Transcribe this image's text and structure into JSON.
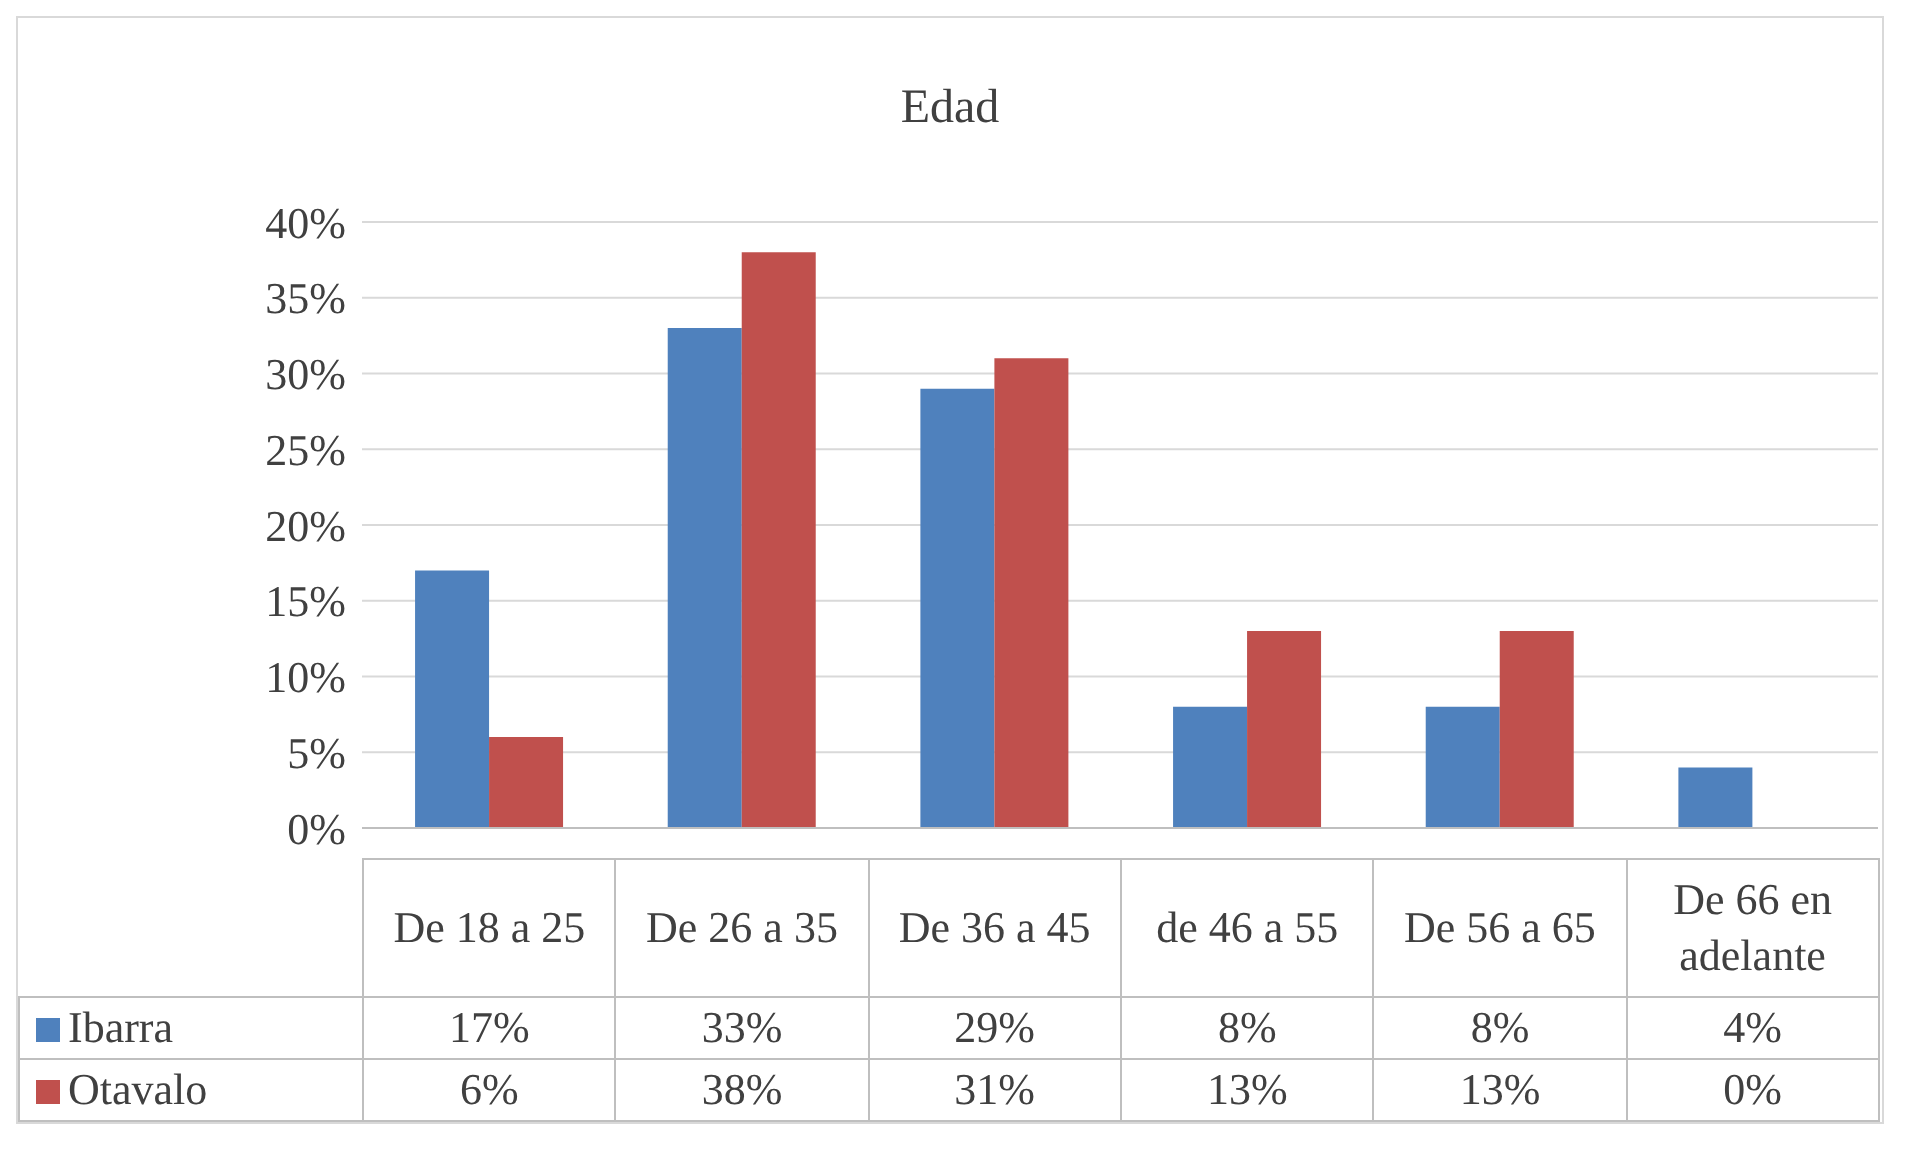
{
  "chart_data": {
    "type": "bar",
    "title": "Edad",
    "categories": [
      "De 18 a 25",
      "De 26 a 35",
      "De 36 a 45",
      "de 46 a 55",
      "De 56 a 65",
      "De 66 en adelante"
    ],
    "series": [
      {
        "name": "Ibarra",
        "color": "#4f81bd",
        "values": [
          17,
          33,
          29,
          8,
          8,
          4
        ],
        "value_labels": [
          "17%",
          "33%",
          "29%",
          "8%",
          "8%",
          "4%"
        ]
      },
      {
        "name": "Otavalo",
        "color": "#c0504d",
        "values": [
          6,
          38,
          31,
          13,
          13,
          0
        ],
        "value_labels": [
          "6%",
          "38%",
          "31%",
          "13%",
          "13%",
          "0%"
        ]
      }
    ],
    "ylim": [
      0,
      40
    ],
    "yticks": [
      {
        "value": 0,
        "label": "0%"
      },
      {
        "value": 5,
        "label": "5%"
      },
      {
        "value": 10,
        "label": "10%"
      },
      {
        "value": 15,
        "label": "15%"
      },
      {
        "value": 20,
        "label": "20%"
      },
      {
        "value": 25,
        "label": "25%"
      },
      {
        "value": 30,
        "label": "30%"
      },
      {
        "value": 35,
        "label": "35%"
      },
      {
        "value": 40,
        "label": "40%"
      }
    ],
    "grid": "y",
    "legend": "bottom"
  }
}
